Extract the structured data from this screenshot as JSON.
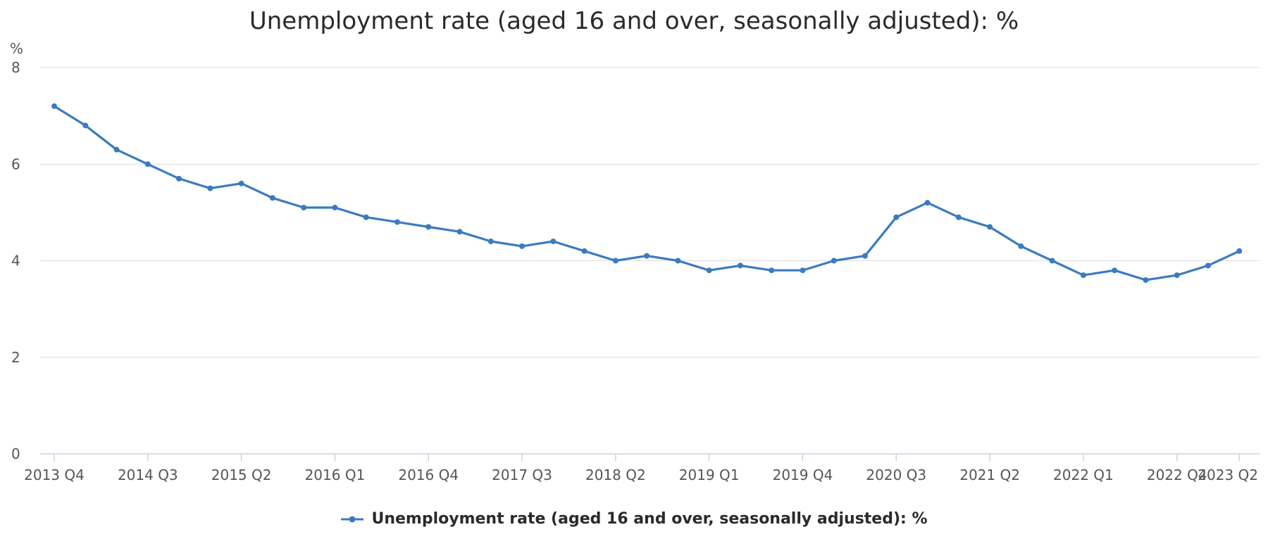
{
  "chart_data": {
    "type": "line",
    "title": "Unemployment rate (aged 16 and over, seasonally adjusted): %",
    "y_unit_label": "%",
    "xlabel": "",
    "ylabel": "",
    "ylim": [
      0,
      8
    ],
    "y_ticks": [
      0,
      2,
      4,
      6,
      8
    ],
    "grid": true,
    "legend_placement": "bottom-center",
    "categories": [
      "2013 Q4",
      "2014 Q1",
      "2014 Q2",
      "2014 Q3",
      "2014 Q4",
      "2015 Q1",
      "2015 Q2",
      "2015 Q3",
      "2015 Q4",
      "2016 Q1",
      "2016 Q2",
      "2016 Q3",
      "2016 Q4",
      "2017 Q1",
      "2017 Q2",
      "2017 Q3",
      "2017 Q4",
      "2018 Q1",
      "2018 Q2",
      "2018 Q3",
      "2018 Q4",
      "2019 Q1",
      "2019 Q2",
      "2019 Q3",
      "2019 Q4",
      "2020 Q1",
      "2020 Q2",
      "2020 Q3",
      "2020 Q4",
      "2021 Q1",
      "2021 Q2",
      "2021 Q3",
      "2021 Q4",
      "2022 Q1",
      "2022 Q2",
      "2022 Q3",
      "2022 Q4",
      "2023 Q1",
      "2023 Q2"
    ],
    "x_tick_labels": [
      "2013 Q4",
      "2014 Q3",
      "2015 Q2",
      "2016 Q1",
      "2016 Q4",
      "2017 Q3",
      "2018 Q2",
      "2019 Q1",
      "2019 Q4",
      "2020 Q3",
      "2021 Q2",
      "2022 Q1",
      "2022 Q4",
      "2023 Q2"
    ],
    "series": [
      {
        "name": "Unemployment rate (aged 16 and over, seasonally adjusted): %",
        "color": "#3a7bbf",
        "values": [
          7.2,
          6.8,
          6.3,
          6.0,
          5.7,
          5.5,
          5.6,
          5.3,
          5.1,
          5.1,
          4.9,
          4.8,
          4.7,
          4.6,
          4.4,
          4.3,
          4.4,
          4.2,
          4.0,
          4.1,
          4.0,
          3.8,
          3.9,
          3.8,
          3.8,
          4.0,
          4.1,
          4.9,
          5.2,
          4.9,
          4.7,
          4.3,
          4.0,
          3.7,
          3.8,
          3.6,
          3.7,
          3.9,
          4.2
        ]
      }
    ]
  }
}
